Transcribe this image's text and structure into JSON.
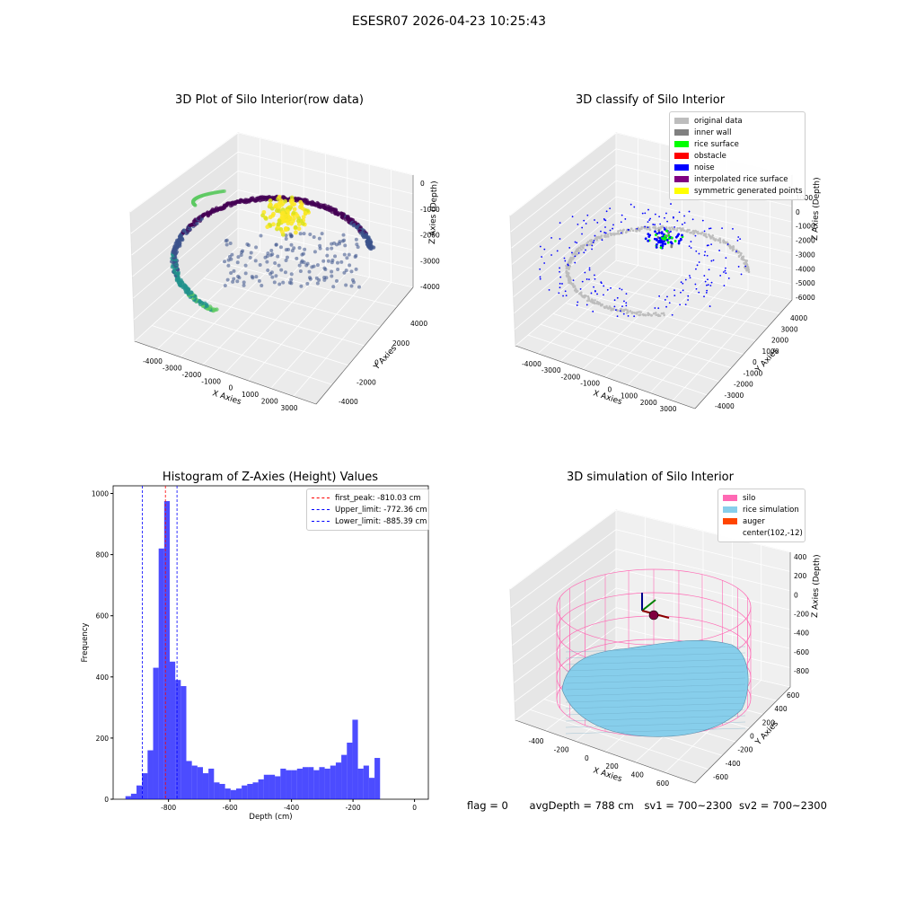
{
  "figure_title": "ESESR07 2026-04-23 10:25:43",
  "status": {
    "flag": "flag = 0",
    "avg_depth": "avgDepth = 788 cm",
    "sv1": "sv1 = 700~2300",
    "sv2": "sv2 = 700~2300"
  },
  "chart_data": [
    {
      "type": "scatter",
      "title": "3D Plot of Silo Interior(row data)",
      "xlabel": "X Axies",
      "ylabel": "Y Axies",
      "zlabel": "Z Axies (Depth)",
      "x_ticks": [
        "-4000",
        "-3000",
        "-2000",
        "-1000",
        "0",
        "1000",
        "2000",
        "3000"
      ],
      "y_ticks": [
        "-4000",
        "-2000",
        "0",
        "2000",
        "4000"
      ],
      "z_ticks": [
        "0",
        "-1000",
        "-2000",
        "-3000",
        "-4000"
      ],
      "colormap": [
        "#440154",
        "#3b528b",
        "#21918c",
        "#5ec962",
        "#fde725"
      ]
    },
    {
      "type": "scatter",
      "title": "3D classify of Silo Interior",
      "xlabel": "X Axies",
      "ylabel": "Y Axies",
      "zlabel": "Z Axies (Depth)",
      "x_ticks": [
        "-4000",
        "-3000",
        "-2000",
        "-1000",
        "0",
        "1000",
        "2000",
        "3000"
      ],
      "y_ticks": [
        "-4000",
        "-3000",
        "-2000",
        "-1000",
        "0",
        "1000",
        "2000",
        "3000",
        "4000"
      ],
      "z_ticks": [
        "1000",
        "0",
        "-1000",
        "-2000",
        "-3000",
        "-4000",
        "-5000",
        "-6000"
      ],
      "legend": [
        {
          "label": "original data",
          "color": "#bdbdbd"
        },
        {
          "label": "inner wall",
          "color": "#808080"
        },
        {
          "label": "rice surface",
          "color": "#00ff00"
        },
        {
          "label": "obstacle",
          "color": "#ff0000"
        },
        {
          "label": "noise",
          "color": "#0000ff"
        },
        {
          "label": "interpolated rice surface",
          "color": "#800080"
        },
        {
          "label": "symmetric generated points",
          "color": "#ffff00"
        }
      ]
    },
    {
      "type": "bar",
      "title": "Histogram of Z-Axies (Height) Values",
      "xlabel": "Depth (cm)",
      "ylabel": "Frequency",
      "xlim": [
        -980,
        45
      ],
      "ylim": [
        0,
        1025
      ],
      "x_ticks": [
        -800,
        -600,
        -400,
        -200,
        0
      ],
      "y_ticks": [
        0,
        200,
        400,
        600,
        800,
        1000
      ],
      "bin_width": 18,
      "bin_start": -940,
      "values": [
        10,
        18,
        45,
        85,
        160,
        430,
        820,
        975,
        450,
        390,
        370,
        125,
        110,
        105,
        85,
        100,
        55,
        50,
        35,
        30,
        35,
        45,
        50,
        55,
        65,
        80,
        80,
        75,
        100,
        95,
        95,
        100,
        105,
        105,
        95,
        105,
        100,
        110,
        120,
        145,
        185,
        260,
        100,
        110,
        70,
        135
      ],
      "bar_color": "#0000ff",
      "vlines": [
        {
          "label": "first_peak: -810.03 cm",
          "x": -810.03,
          "color": "#ff0000"
        },
        {
          "label": "Upper_limit: -772.36 cm",
          "x": -772.36,
          "color": "#0000ff"
        },
        {
          "label": "Lower_limit: -885.39 cm",
          "x": -885.39,
          "color": "#0000ff"
        }
      ]
    },
    {
      "type": "area",
      "title": "3D simulation of Silo Interior",
      "xlabel": "X Axies",
      "ylabel": "Y Axies",
      "zlabel": "Z Axies (Depth)",
      "x_ticks": [
        "-400",
        "-200",
        "0",
        "200",
        "400",
        "600"
      ],
      "y_ticks": [
        "-600",
        "-400",
        "-200",
        "0",
        "200",
        "400",
        "600"
      ],
      "z_ticks": [
        "400",
        "200",
        "0",
        "-200",
        "-400",
        "-600",
        "-800"
      ],
      "legend": [
        {
          "label": "silo",
          "color": "#ff69b4"
        },
        {
          "label": "rice simulation",
          "color": "#87ceeb"
        },
        {
          "label": "auger",
          "color": "#ff4500"
        },
        {
          "label": "center(102,-12)",
          "color": "#ffffff"
        }
      ]
    }
  ]
}
